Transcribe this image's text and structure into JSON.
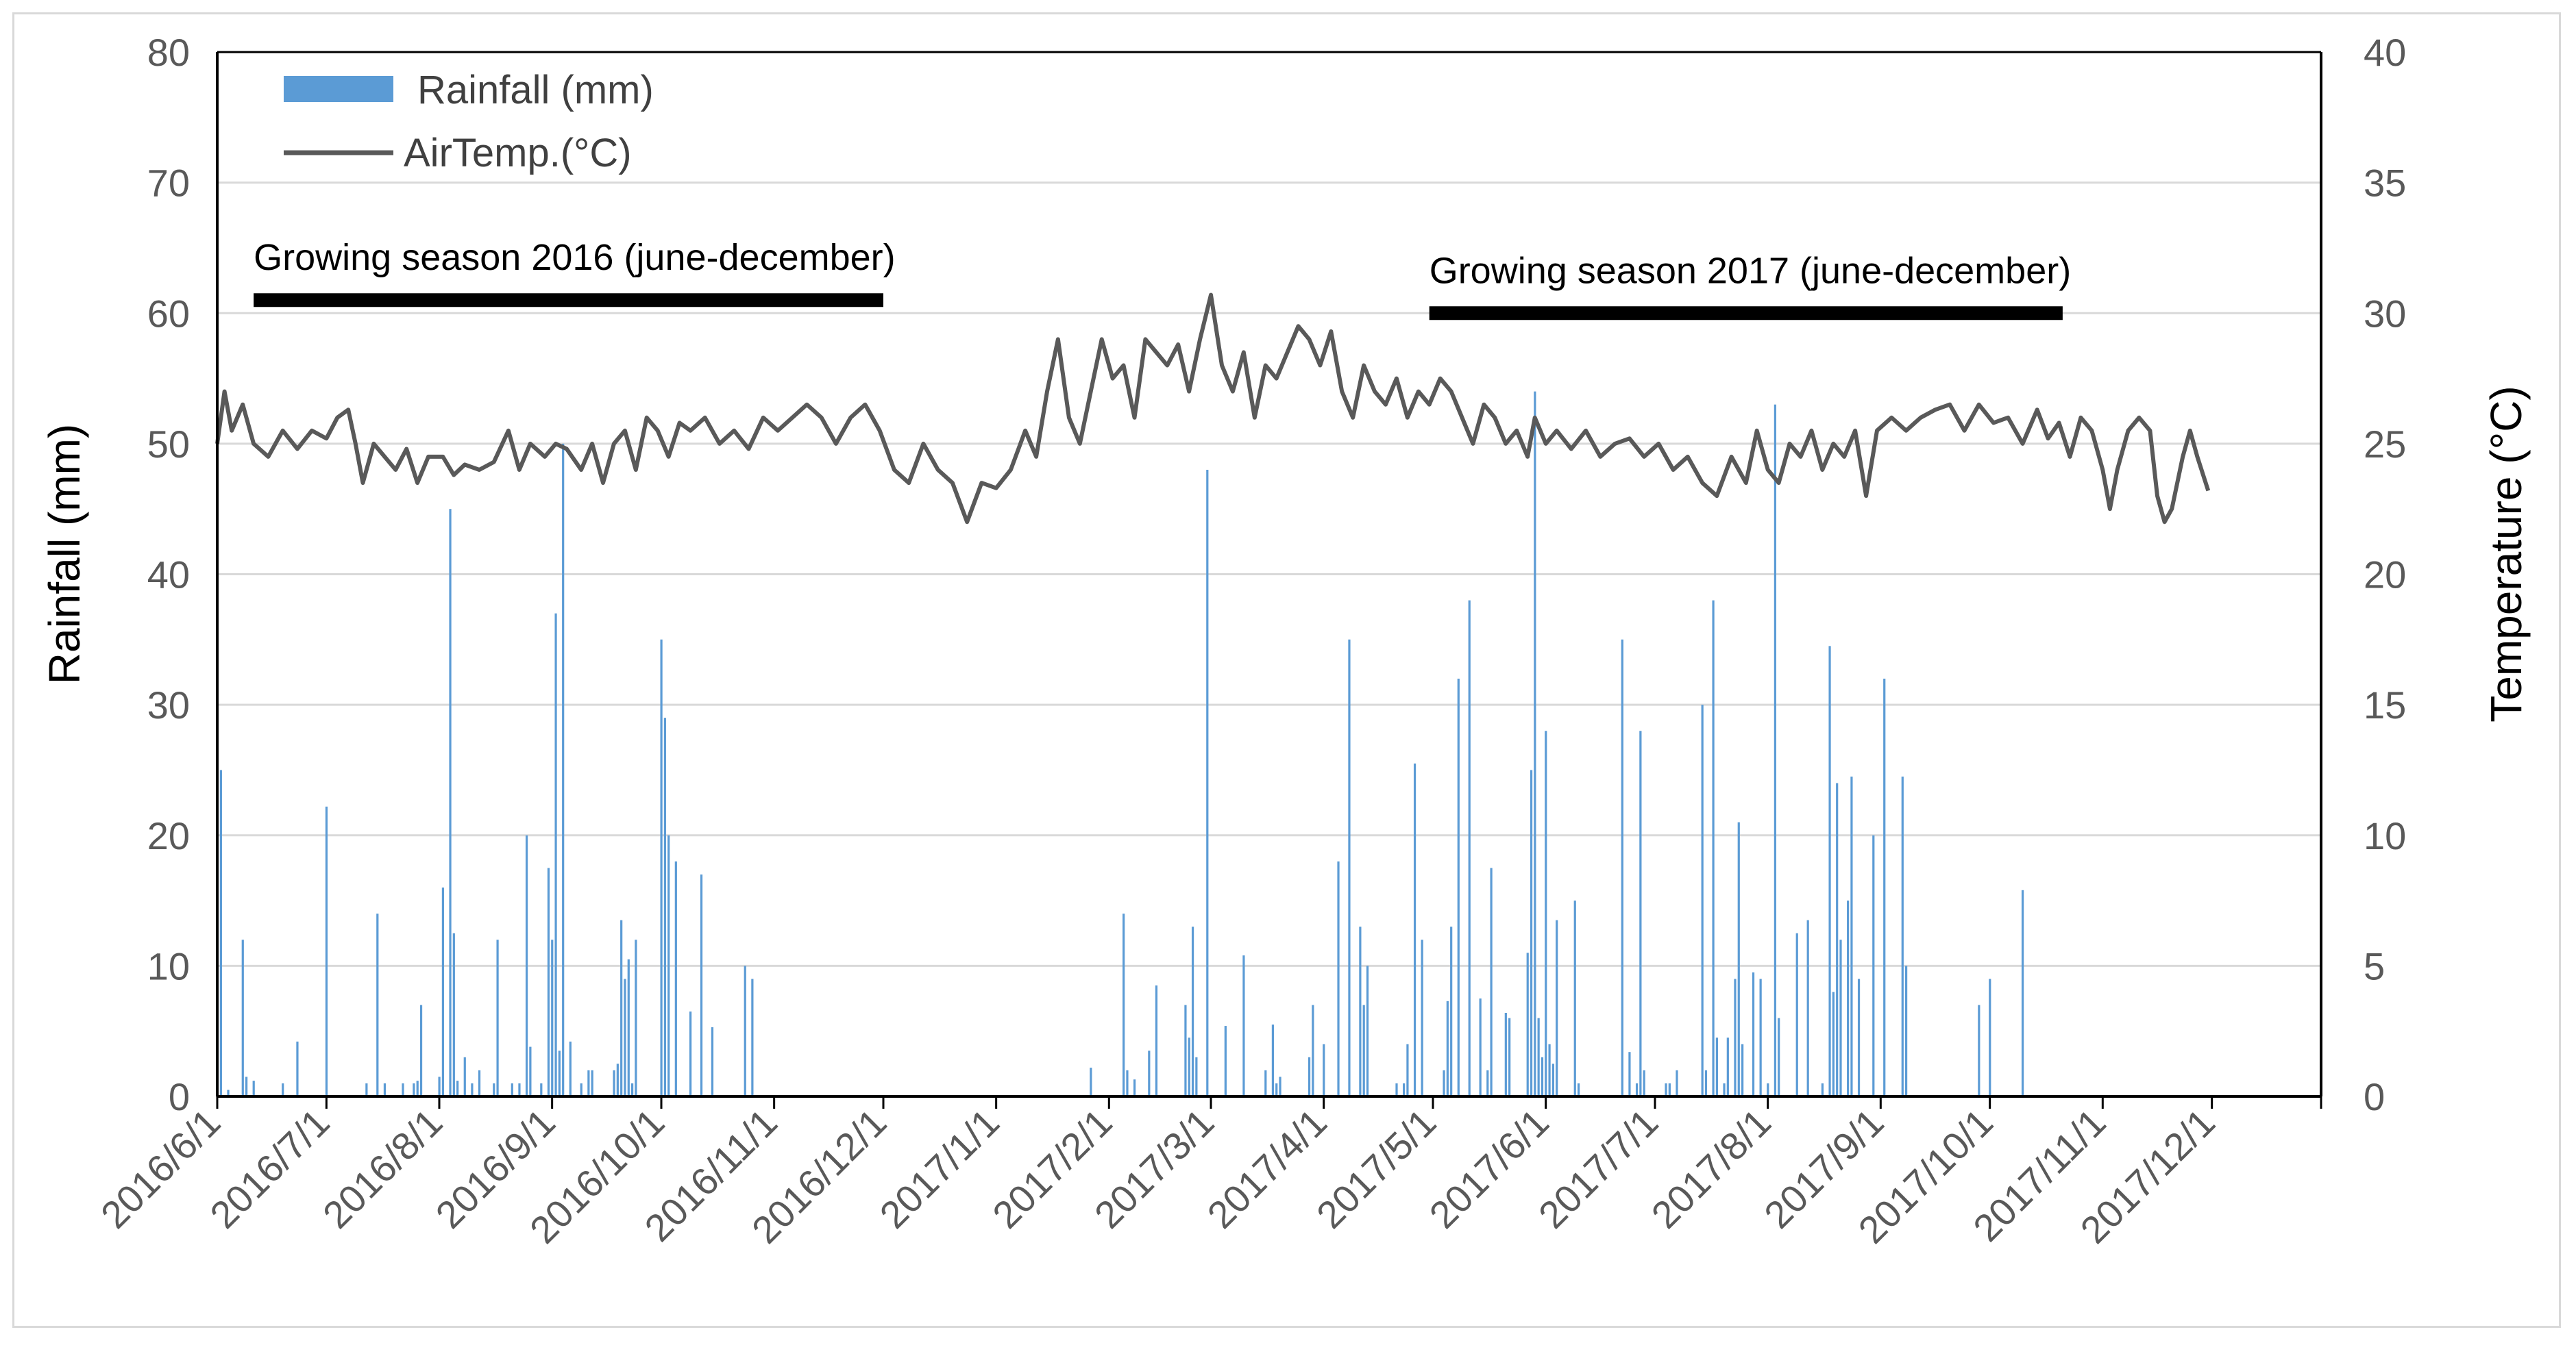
{
  "chart_data": {
    "type": "bar+line",
    "title": "",
    "x_tick_labels": [
      "2016/6/1",
      "2016/7/1",
      "2016/8/1",
      "2016/9/1",
      "2016/10/1",
      "2016/11/1",
      "2016/12/1",
      "2017/1/1",
      "2017/2/1",
      "2017/3/1",
      "2017/4/1",
      "2017/5/1",
      "2017/6/1",
      "2017/7/1",
      "2017/8/1",
      "2017/9/1",
      "2017/10/1",
      "2017/11/1",
      "2017/12/1"
    ],
    "x_start": "2016/6/1",
    "x_end": "2017/12/31",
    "y_left": {
      "label": "Rainfall (mm)",
      "ylim": [
        0,
        80
      ],
      "ticks": [
        0,
        10,
        20,
        30,
        40,
        50,
        60,
        70,
        80
      ]
    },
    "y_right": {
      "label": "Temperature (°C)",
      "ylim": [
        0,
        40
      ],
      "ticks": [
        0,
        5,
        10,
        15,
        20,
        25,
        30,
        35,
        40
      ]
    },
    "grid": "horizontal",
    "legend": {
      "placement": "top-left",
      "entries": [
        {
          "label": "Rainfall (mm)",
          "kind": "bar",
          "color": "#5b9bd5"
        },
        {
          "label": "AirTemp.(°C)",
          "kind": "line",
          "color": "#595959"
        }
      ]
    },
    "annotations": [
      {
        "text": "Growing season 2016 (june-december)",
        "start_day": 10,
        "end_day": 183,
        "level_mm": 61
      },
      {
        "text": "Growing season 2017 (june-december)",
        "start_day": 333,
        "end_day": 507,
        "level_mm": 60
      }
    ],
    "series": [
      {
        "name": "Rainfall (mm)",
        "type": "bar",
        "axis": "left",
        "color": "#5b9bd5",
        "points": [
          [
            1,
            25
          ],
          [
            3,
            0.5
          ],
          [
            7,
            12
          ],
          [
            8,
            1.5
          ],
          [
            10,
            1.2
          ],
          [
            18,
            1
          ],
          [
            22,
            4.2
          ],
          [
            30,
            22.2
          ],
          [
            41,
            1
          ],
          [
            44,
            14
          ],
          [
            46,
            1
          ],
          [
            51,
            1
          ],
          [
            54,
            1
          ],
          [
            55,
            1.2
          ],
          [
            56,
            7
          ],
          [
            61,
            1.5
          ],
          [
            62,
            16
          ],
          [
            64,
            45
          ],
          [
            65,
            12.5
          ],
          [
            66,
            1.2
          ],
          [
            68,
            3
          ],
          [
            70,
            1
          ],
          [
            72,
            2
          ],
          [
            76,
            1
          ],
          [
            77,
            12
          ],
          [
            81,
            1
          ],
          [
            83,
            1
          ],
          [
            85,
            20
          ],
          [
            86,
            3.8
          ],
          [
            89,
            1
          ],
          [
            91,
            17.5
          ],
          [
            92,
            12
          ],
          [
            93,
            37
          ],
          [
            94,
            3.5
          ],
          [
            95,
            50
          ],
          [
            97,
            4.2
          ],
          [
            100,
            1
          ],
          [
            102,
            2
          ],
          [
            103,
            2
          ],
          [
            109,
            2
          ],
          [
            110,
            2.5
          ],
          [
            111,
            13.5
          ],
          [
            112,
            9
          ],
          [
            113,
            10.5
          ],
          [
            114,
            1
          ],
          [
            115,
            12
          ],
          [
            122,
            35
          ],
          [
            123,
            29
          ],
          [
            124,
            20
          ],
          [
            126,
            18
          ],
          [
            130,
            6.5
          ],
          [
            133,
            17
          ],
          [
            136,
            5.3
          ],
          [
            145,
            10
          ],
          [
            147,
            9
          ],
          [
            240,
            2.2
          ],
          [
            249,
            14
          ],
          [
            250,
            2
          ],
          [
            252,
            1.3
          ],
          [
            256,
            3.5
          ],
          [
            258,
            8.5
          ],
          [
            266,
            7
          ],
          [
            267,
            4.5
          ],
          [
            268,
            13
          ],
          [
            269,
            3
          ],
          [
            272,
            48
          ],
          [
            277,
            5.4
          ],
          [
            282,
            10.8
          ],
          [
            288,
            2
          ],
          [
            290,
            5.5
          ],
          [
            291,
            1
          ],
          [
            292,
            1.5
          ],
          [
            300,
            3
          ],
          [
            301,
            7
          ],
          [
            304,
            4
          ],
          [
            308,
            18
          ],
          [
            311,
            35
          ],
          [
            314,
            13
          ],
          [
            315,
            7
          ],
          [
            316,
            10
          ],
          [
            324,
            1
          ],
          [
            326,
            1
          ],
          [
            327,
            4
          ],
          [
            329,
            25.5
          ],
          [
            331,
            12
          ],
          [
            337,
            2
          ],
          [
            338,
            7.3
          ],
          [
            339,
            13
          ],
          [
            341,
            32
          ],
          [
            344,
            38
          ],
          [
            347,
            7.5
          ],
          [
            349,
            2
          ],
          [
            350,
            17.5
          ],
          [
            354,
            6.4
          ],
          [
            355,
            6
          ],
          [
            360,
            11
          ],
          [
            361,
            25
          ],
          [
            362,
            54
          ],
          [
            363,
            6
          ],
          [
            364,
            3
          ],
          [
            365,
            28
          ],
          [
            366,
            4
          ],
          [
            367,
            2.5
          ],
          [
            368,
            13.5
          ],
          [
            373,
            15
          ],
          [
            374,
            1
          ],
          [
            386,
            35
          ],
          [
            388,
            3.4
          ],
          [
            390,
            1
          ],
          [
            391,
            28
          ],
          [
            392,
            2
          ],
          [
            398,
            1
          ],
          [
            399,
            1
          ],
          [
            401,
            2
          ],
          [
            408,
            30
          ],
          [
            409,
            2
          ],
          [
            411,
            38
          ],
          [
            412,
            4.5
          ],
          [
            414,
            1
          ],
          [
            415,
            4.5
          ],
          [
            417,
            9
          ],
          [
            418,
            21
          ],
          [
            419,
            4
          ],
          [
            422,
            9.5
          ],
          [
            424,
            9
          ],
          [
            426,
            1
          ],
          [
            428,
            53
          ],
          [
            429,
            6
          ],
          [
            434,
            12.5
          ],
          [
            437,
            13.5
          ],
          [
            441,
            1
          ],
          [
            443,
            34.5
          ],
          [
            444,
            8
          ],
          [
            445,
            24
          ],
          [
            446,
            12
          ],
          [
            448,
            15
          ],
          [
            449,
            24.5
          ],
          [
            451,
            9
          ],
          [
            455,
            20
          ],
          [
            458,
            32
          ],
          [
            463,
            24.5
          ],
          [
            464,
            10
          ],
          [
            484,
            7
          ],
          [
            487,
            9
          ],
          [
            496,
            15.8
          ]
        ]
      },
      {
        "name": "AirTemp.(°C)",
        "type": "line",
        "axis": "right",
        "color": "#595959",
        "points": [
          [
            0,
            25
          ],
          [
            2,
            27
          ],
          [
            4,
            25.5
          ],
          [
            7,
            26.5
          ],
          [
            10,
            25
          ],
          [
            14,
            24.5
          ],
          [
            18,
            25.5
          ],
          [
            22,
            24.8
          ],
          [
            26,
            25.5
          ],
          [
            30,
            25.2
          ],
          [
            33,
            26
          ],
          [
            36,
            26.3
          ],
          [
            38,
            25
          ],
          [
            40,
            23.5
          ],
          [
            43,
            25
          ],
          [
            46,
            24.5
          ],
          [
            49,
            24
          ],
          [
            52,
            24.8
          ],
          [
            55,
            23.5
          ],
          [
            58,
            24.5
          ],
          [
            62,
            24.5
          ],
          [
            65,
            23.8
          ],
          [
            68,
            24.2
          ],
          [
            72,
            24
          ],
          [
            76,
            24.3
          ],
          [
            80,
            25.5
          ],
          [
            83,
            24
          ],
          [
            86,
            25
          ],
          [
            90,
            24.5
          ],
          [
            93,
            25
          ],
          [
            96,
            24.8
          ],
          [
            100,
            24
          ],
          [
            103,
            25
          ],
          [
            106,
            23.5
          ],
          [
            109,
            25
          ],
          [
            112,
            25.5
          ],
          [
            115,
            24
          ],
          [
            118,
            26
          ],
          [
            121,
            25.5
          ],
          [
            124,
            24.5
          ],
          [
            127,
            25.8
          ],
          [
            130,
            25.5
          ],
          [
            134,
            26
          ],
          [
            138,
            25
          ],
          [
            142,
            25.5
          ],
          [
            146,
            24.8
          ],
          [
            150,
            26
          ],
          [
            154,
            25.5
          ],
          [
            158,
            26
          ],
          [
            162,
            26.5
          ],
          [
            166,
            26
          ],
          [
            170,
            25
          ],
          [
            174,
            26
          ],
          [
            178,
            26.5
          ],
          [
            182,
            25.5
          ],
          [
            186,
            24
          ],
          [
            190,
            23.5
          ],
          [
            194,
            25
          ],
          [
            198,
            24
          ],
          [
            202,
            23.5
          ],
          [
            206,
            22
          ],
          [
            210,
            23.5
          ],
          [
            214,
            23.3
          ],
          [
            218,
            24
          ],
          [
            222,
            25.5
          ],
          [
            225,
            24.5
          ],
          [
            228,
            27
          ],
          [
            231,
            29
          ],
          [
            234,
            26
          ],
          [
            237,
            25
          ],
          [
            240,
            27
          ],
          [
            243,
            29
          ],
          [
            246,
            27.5
          ],
          [
            249,
            28
          ],
          [
            252,
            26
          ],
          [
            255,
            29
          ],
          [
            258,
            28.5
          ],
          [
            261,
            28
          ],
          [
            264,
            28.8
          ],
          [
            267,
            27
          ],
          [
            270,
            29
          ],
          [
            273,
            30.7
          ],
          [
            276,
            28
          ],
          [
            279,
            27
          ],
          [
            282,
            28.5
          ],
          [
            285,
            26
          ],
          [
            288,
            28
          ],
          [
            291,
            27.5
          ],
          [
            294,
            28.5
          ],
          [
            297,
            29.5
          ],
          [
            300,
            29
          ],
          [
            303,
            28
          ],
          [
            306,
            29.3
          ],
          [
            309,
            27
          ],
          [
            312,
            26
          ],
          [
            315,
            28
          ],
          [
            318,
            27
          ],
          [
            321,
            26.5
          ],
          [
            324,
            27.5
          ],
          [
            327,
            26
          ],
          [
            330,
            27
          ],
          [
            333,
            26.5
          ],
          [
            336,
            27.5
          ],
          [
            339,
            27
          ],
          [
            342,
            26
          ],
          [
            345,
            25
          ],
          [
            348,
            26.5
          ],
          [
            351,
            26
          ],
          [
            354,
            25
          ],
          [
            357,
            25.5
          ],
          [
            360,
            24.5
          ],
          [
            362,
            26
          ],
          [
            365,
            25
          ],
          [
            368,
            25.5
          ],
          [
            372,
            24.8
          ],
          [
            376,
            25.5
          ],
          [
            380,
            24.5
          ],
          [
            384,
            25
          ],
          [
            388,
            25.2
          ],
          [
            392,
            24.5
          ],
          [
            396,
            25
          ],
          [
            400,
            24
          ],
          [
            404,
            24.5
          ],
          [
            408,
            23.5
          ],
          [
            412,
            23
          ],
          [
            416,
            24.5
          ],
          [
            420,
            23.5
          ],
          [
            423,
            25.5
          ],
          [
            426,
            24
          ],
          [
            429,
            23.5
          ],
          [
            432,
            25
          ],
          [
            435,
            24.5
          ],
          [
            438,
            25.5
          ],
          [
            441,
            24
          ],
          [
            444,
            25
          ],
          [
            447,
            24.5
          ],
          [
            450,
            25.5
          ],
          [
            453,
            23
          ],
          [
            456,
            25.5
          ],
          [
            460,
            26
          ],
          [
            464,
            25.5
          ],
          [
            468,
            26
          ],
          [
            472,
            26.3
          ],
          [
            476,
            26.5
          ],
          [
            480,
            25.5
          ],
          [
            484,
            26.5
          ],
          [
            488,
            25.8
          ],
          [
            492,
            26
          ],
          [
            496,
            25
          ],
          [
            500,
            26.3
          ],
          [
            503,
            25.2
          ],
          [
            506,
            25.8
          ],
          [
            509,
            24.5
          ],
          [
            512,
            26
          ],
          [
            515,
            25.5
          ],
          [
            518,
            24
          ],
          [
            520,
            22.5
          ],
          [
            522,
            24
          ],
          [
            525,
            25.5
          ],
          [
            528,
            26
          ],
          [
            531,
            25.5
          ],
          [
            533,
            23
          ],
          [
            535,
            22
          ],
          [
            537,
            22.5
          ],
          [
            540,
            24.5
          ],
          [
            542,
            25.5
          ],
          [
            544,
            24.5
          ],
          [
            547,
            23.2
          ]
        ]
      }
    ]
  }
}
